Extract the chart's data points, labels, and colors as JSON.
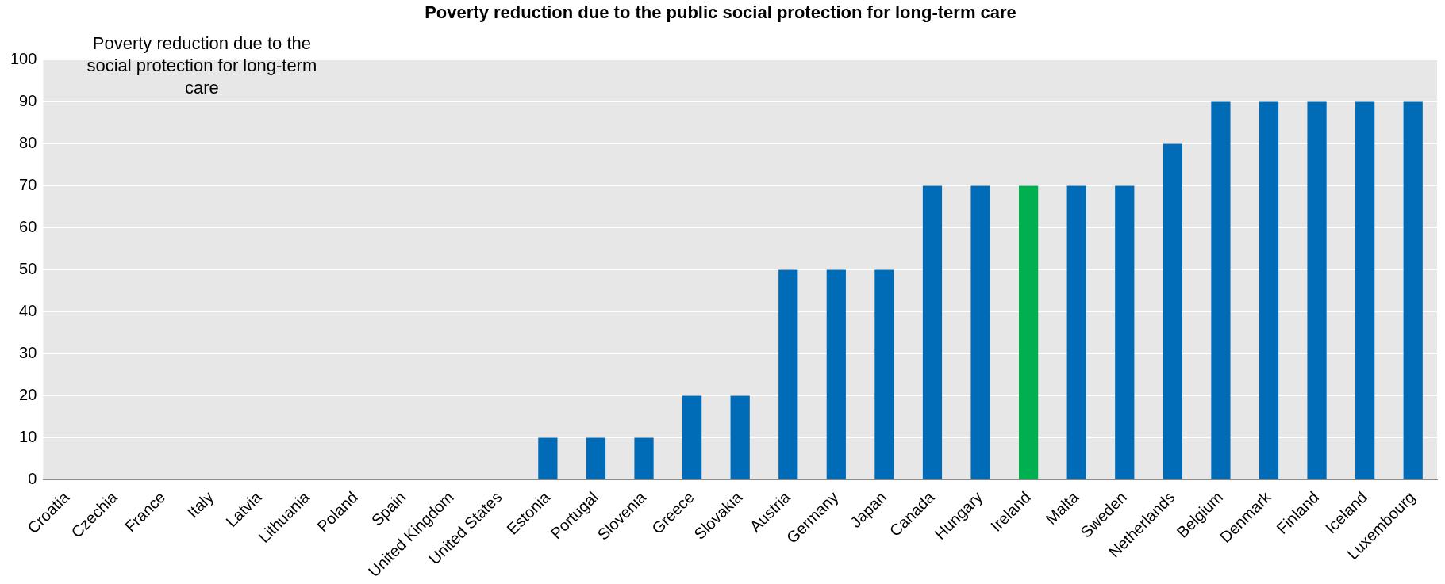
{
  "chart_data": {
    "type": "bar",
    "title": "Poverty reduction due to the public social protection for long-term care",
    "categories": [
      "Croatia",
      "Czechia",
      "France",
      "Italy",
      "Latvia",
      "Lithuania",
      "Poland",
      "Spain",
      "United Kingdom",
      "United States",
      "Estonia",
      "Portugal",
      "Slovenia",
      "Greece",
      "Slovakia",
      "Austria",
      "Germany",
      "Japan",
      "Canada",
      "Hungary",
      "Ireland",
      "Malta",
      "Sweden",
      "Netherlands",
      "Belgium",
      "Denmark",
      "Finland",
      "Iceland",
      "Luxembourg"
    ],
    "values": [
      0,
      0,
      0,
      0,
      0,
      0,
      0,
      0,
      0,
      0,
      10,
      10,
      10,
      20,
      20,
      50,
      50,
      50,
      70,
      70,
      70,
      70,
      70,
      80,
      90,
      90,
      90,
      90,
      90
    ],
    "colors": [
      "#006bb6",
      "#006bb6",
      "#006bb6",
      "#006bb6",
      "#006bb6",
      "#006bb6",
      "#006bb6",
      "#006bb6",
      "#006bb6",
      "#006bb6",
      "#006bb6",
      "#006bb6",
      "#006bb6",
      "#006bb6",
      "#006bb6",
      "#006bb6",
      "#006bb6",
      "#006bb6",
      "#006bb6",
      "#006bb6",
      "#00b050",
      "#006bb6",
      "#006bb6",
      "#006bb6",
      "#006bb6",
      "#006bb6",
      "#006bb6",
      "#006bb6",
      "#006bb6"
    ],
    "ylim": [
      0,
      100
    ],
    "yticks": [
      0,
      10,
      20,
      30,
      40,
      50,
      60,
      70,
      80,
      90,
      100
    ],
    "grid": "y",
    "legend": false,
    "annotations": [
      "Poverty reduction due to the social protection for long-term care"
    ]
  }
}
